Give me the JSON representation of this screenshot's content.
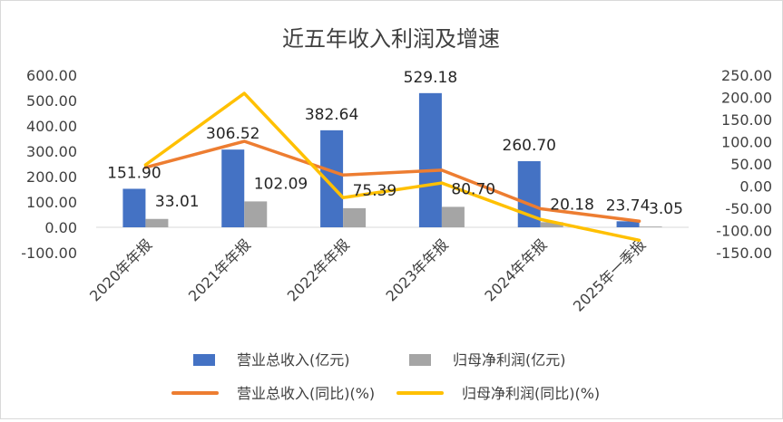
{
  "chart_data": {
    "type": "bar",
    "combo": "bar+line (secondary axis)",
    "title": "近五年收入利润及增速",
    "categories": [
      "2020年年报",
      "2021年年报",
      "2022年年报",
      "2023年年报",
      "2024年年报",
      "2025年一季报"
    ],
    "left_axis": {
      "ylim": [
        -100,
        600
      ],
      "ticks": [
        "600.00",
        "500.00",
        "400.00",
        "300.00",
        "200.00",
        "100.00",
        "0.00",
        "-100.00"
      ]
    },
    "right_axis": {
      "ylim": [
        -150,
        250
      ],
      "ticks": [
        "250.00",
        "200.00",
        "150.00",
        "100.00",
        "50.00",
        "0.00",
        "-50.00",
        "-100.00",
        "-150.00"
      ]
    },
    "series": [
      {
        "name": "营业总收入(亿元)",
        "type": "bar",
        "axis": "left",
        "color": "#4472C4",
        "values": [
          151.9,
          306.52,
          382.64,
          529.18,
          260.7,
          23.74
        ],
        "labels": [
          "151.90",
          "306.52",
          "382.64",
          "529.18",
          "260.70",
          "23.74"
        ]
      },
      {
        "name": "归母净利润(亿元)",
        "type": "bar",
        "axis": "left",
        "color": "#A5A5A5",
        "values": [
          33.01,
          102.09,
          75.39,
          80.7,
          20.18,
          3.05
        ],
        "labels": [
          "33.01",
          "102.09",
          "75.39",
          "80.70",
          "20.18",
          "3.05"
        ]
      },
      {
        "name": "营业总收入(同比)(%)",
        "type": "line",
        "axis": "right",
        "color": "#ED7D31",
        "values": [
          42,
          101,
          25,
          36,
          -51,
          -79
        ]
      },
      {
        "name": "归母净利润(同比)(%)",
        "type": "line",
        "axis": "right",
        "color": "#FFC000",
        "values": [
          48,
          209,
          -26,
          7,
          -75,
          -122
        ]
      }
    ],
    "legend_position": "bottom",
    "grid": false
  }
}
